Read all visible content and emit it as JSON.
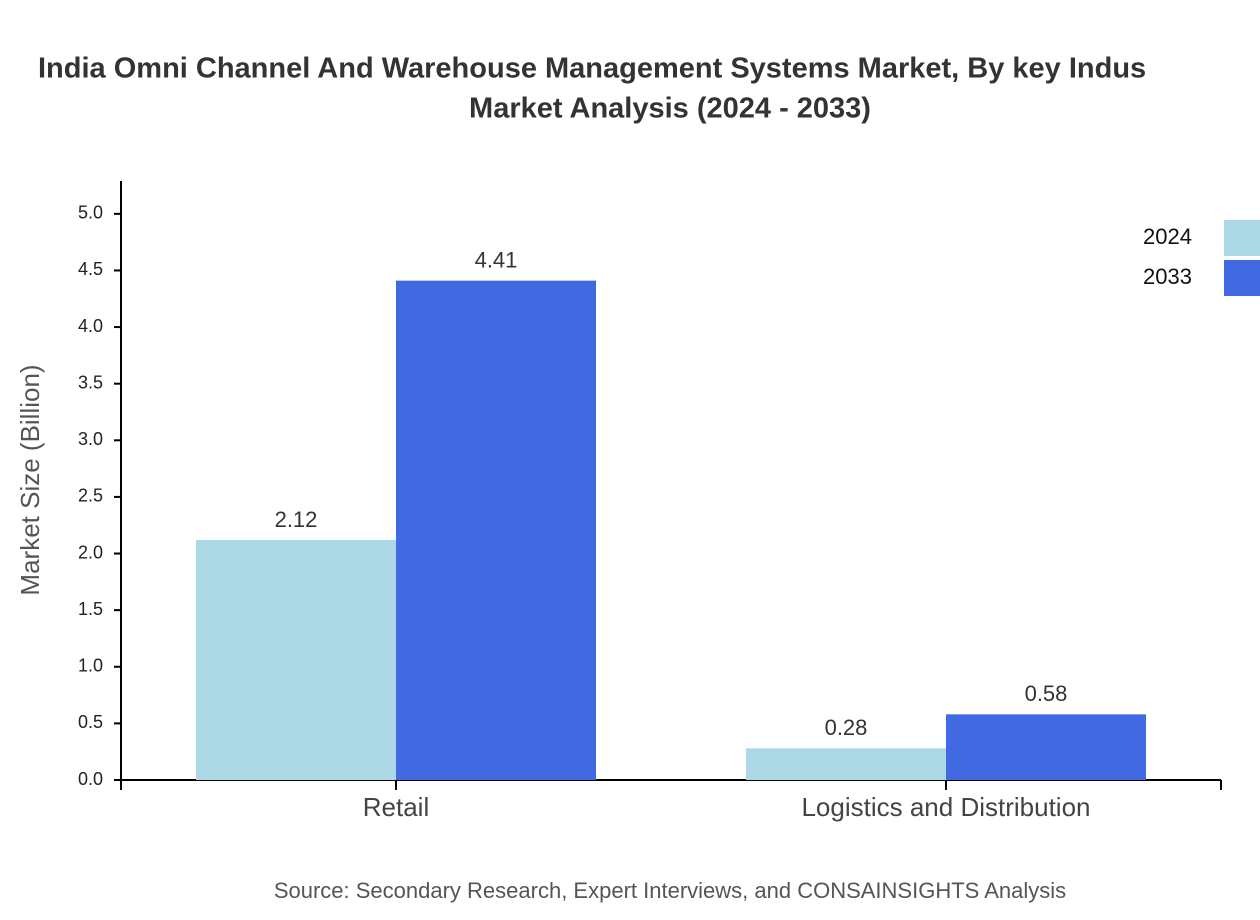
{
  "chart_data": {
    "type": "bar",
    "title": [
      "India Omni Channel And Warehouse Management Systems Market, By key Indus",
      "Market Analysis (2024 - 2033)"
    ],
    "y_label": "Market Size (Billion)",
    "source": "Source: Secondary Research, Expert Interviews, and CONSAINSIGHTS Analysis",
    "categories": [
      "Retail",
      "Logistics and Distribution"
    ],
    "series": [
      {
        "name": "2024",
        "color": "#add8e6",
        "values": [
          2.12,
          0.28
        ]
      },
      {
        "name": "2033",
        "color": "#4169e1",
        "values": [
          4.41,
          0.58
        ]
      }
    ],
    "ylim": [
      0,
      5.29
    ],
    "yticks": [
      {
        "value": 0,
        "label": "0.0"
      },
      0.5,
      {
        "value": 1,
        "label": "1.0"
      },
      1.5,
      {
        "value": 2,
        "label": "2.0"
      },
      2.5,
      {
        "value": 3,
        "label": "3.0"
      },
      3.5,
      {
        "value": 4,
        "label": "4.0"
      },
      4.5,
      {
        "value": 5,
        "label": "5.0"
      }
    ]
  }
}
